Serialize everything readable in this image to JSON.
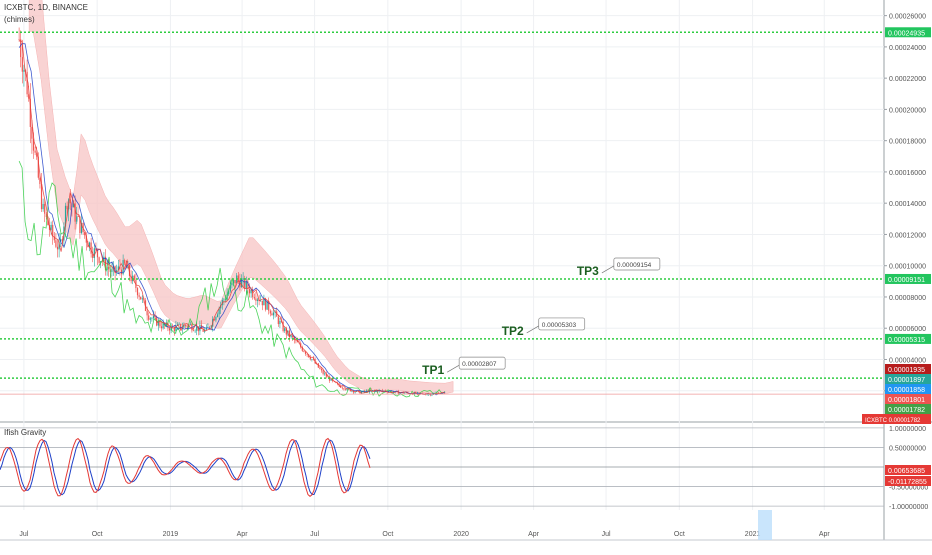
{
  "header": {
    "symbol_line": "ICXBTC, 1D, BINANCE",
    "indicator_line": "(chimes)",
    "sub_indicator": "Ifish Gravity"
  },
  "colors": {
    "green_line": "#2ecc40",
    "red_line": "#e53935",
    "blue_line": "#1e40c8",
    "cloud_fill": "#f8c5c5",
    "grid": "#eef0f3"
  },
  "chart_data": [
    {
      "type": "line",
      "title": "",
      "x_labels": [
        "Jul",
        "Oct",
        "2019",
        "Apr",
        "Jul",
        "Oct",
        "2020",
        "Apr",
        "Jul",
        "Oct",
        "2021",
        "Apr"
      ],
      "y_ticks": [
        "0.00026000",
        "0.00024000",
        "0.00022000",
        "0.00020000",
        "0.00018000",
        "0.00016000",
        "0.00014000",
        "0.00012000",
        "0.00010000",
        "0.00008000",
        "0.00006000",
        "0.00004000",
        "0.00002000"
      ],
      "ylim": [
        0.0,
        0.00027
      ],
      "price_path": [
        [
          "2018-06-25",
          0.000245
        ],
        [
          "2018-07-05",
          0.000215
        ],
        [
          "2018-07-15",
          0.00017
        ],
        [
          "2018-07-25",
          0.000135
        ],
        [
          "2018-08-05",
          0.00012
        ],
        [
          "2018-08-15",
          0.00011
        ],
        [
          "2018-08-25",
          0.000145
        ],
        [
          "2018-09-05",
          0.00013
        ],
        [
          "2018-09-15",
          0.00012
        ],
        [
          "2018-09-25",
          0.00011
        ],
        [
          "2018-10-05",
          0.000105
        ],
        [
          "2018-10-20",
          9.5e-05
        ],
        [
          "2018-11-05",
          0.0001
        ],
        [
          "2018-11-20",
          8.5e-05
        ],
        [
          "2018-12-05",
          6.8e-05
        ],
        [
          "2018-12-20",
          6.2e-05
        ],
        [
          "2019-01-05",
          6e-05
        ],
        [
          "2019-01-25",
          6.2e-05
        ],
        [
          "2019-02-15",
          5.8e-05
        ],
        [
          "2019-03-05",
          7.5e-05
        ],
        [
          "2019-03-25",
          9.2e-05
        ],
        [
          "2019-04-10",
          8.5e-05
        ],
        [
          "2019-04-25",
          7.8e-05
        ],
        [
          "2019-05-10",
          7e-05
        ],
        [
          "2019-05-25",
          5.8e-05
        ],
        [
          "2019-06-10",
          5e-05
        ],
        [
          "2019-06-25",
          4.2e-05
        ],
        [
          "2019-07-10",
          3.2e-05
        ],
        [
          "2019-07-25",
          2.5e-05
        ],
        [
          "2019-08-10",
          2.1e-05
        ],
        [
          "2019-08-25",
          1.9e-05
        ],
        [
          "2019-09-10",
          2e-05
        ],
        [
          "2019-09-25",
          2e-05
        ],
        [
          "2019-10-10",
          1.9e-05
        ],
        [
          "2019-10-25",
          1.85e-05
        ],
        [
          "2019-11-10",
          1.8e-05
        ],
        [
          "2019-11-25",
          1.78e-05
        ],
        [
          "2019-12-05",
          1.88e-05
        ]
      ],
      "levels": [
        {
          "label": "0.00024935",
          "value": 0.00024935
        },
        {
          "label": "0.00009151",
          "value": 9.151e-05,
          "tag": "TP3",
          "note": "0.00009154"
        },
        {
          "label": "0.00005315",
          "value": 5.315e-05,
          "tag": "TP2",
          "note": "0.00005303"
        },
        {
          "label": "0.00002805",
          "value": 2.805e-05,
          "tag": "TP1",
          "note": "0.00002807"
        }
      ],
      "price_labels": [
        {
          "text": "0.00001935",
          "color": "#b71c1c"
        },
        {
          "text": "0.00001897",
          "color": "#26a69a"
        },
        {
          "text": "0.00001858",
          "color": "#2196f3"
        },
        {
          "text": "0.00001801",
          "color": "#ef5350"
        },
        {
          "text": "0.00001782",
          "color": "#43a047"
        },
        {
          "text": "ICXBTC  0.00001782",
          "color": "#e53935"
        }
      ]
    },
    {
      "type": "line",
      "title": "Ifish Gravity",
      "y_ticks": [
        "1.00000000",
        "0.50000000",
        "-0.50000000",
        "-1.00000000"
      ],
      "ylim": [
        -1.1,
        1.1
      ],
      "value_labels": [
        {
          "text": "0.00653685",
          "color": "#e53935"
        },
        {
          "text": "-0.01172855",
          "color": "#e53935"
        }
      ]
    }
  ]
}
